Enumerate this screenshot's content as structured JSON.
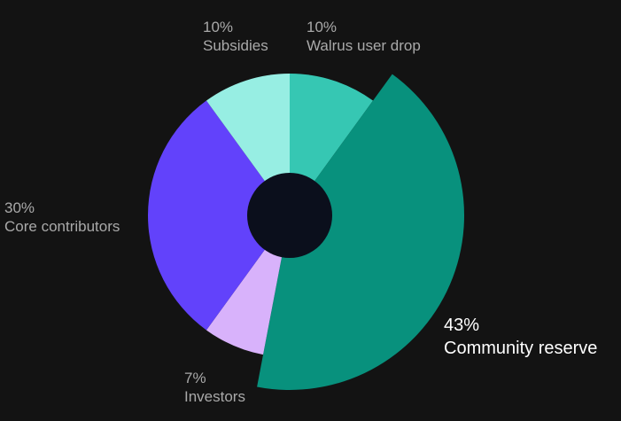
{
  "chart_data": {
    "type": "pie",
    "donut": true,
    "highlighted": "Community reserve",
    "slices": [
      {
        "label": "Walrus user drop",
        "value": 10,
        "percent_label": "10%",
        "color": "#36c7b3"
      },
      {
        "label": "Community reserve",
        "value": 43,
        "percent_label": "43%",
        "color": "#08917d"
      },
      {
        "label": "Investors",
        "value": 7,
        "percent_label": "7%",
        "color": "#d8b2fb"
      },
      {
        "label": "Core contributors",
        "value": 30,
        "percent_label": "30%",
        "color": "#6242fb"
      },
      {
        "label": "Subsidies",
        "value": 10,
        "percent_label": "10%",
        "color": "#97eee3"
      }
    ]
  },
  "colors": {
    "background": "#131313",
    "hole": "#0b0f1c",
    "label_text": "#a9a9a9",
    "highlight_text": "#ffffff"
  }
}
